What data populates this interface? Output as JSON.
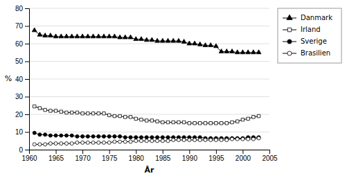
{
  "chart_data": {
    "type": "line",
    "x": [
      1961,
      1962,
      1963,
      1964,
      1965,
      1966,
      1967,
      1968,
      1969,
      1970,
      1971,
      1972,
      1973,
      1974,
      1975,
      1976,
      1977,
      1978,
      1979,
      1980,
      1981,
      1982,
      1983,
      1984,
      1985,
      1986,
      1987,
      1988,
      1989,
      1990,
      1991,
      1992,
      1993,
      1994,
      1995,
      1996,
      1997,
      1998,
      1999,
      2000,
      2001,
      2002,
      2003
    ],
    "series": [
      {
        "name": "Danmark",
        "color": "#000000",
        "marker": "triangle",
        "line_style": "solid",
        "values": [
          67.5,
          65.0,
          64.5,
          64.5,
          64.0,
          64.0,
          64.0,
          64.0,
          64.0,
          64.0,
          64.0,
          64.0,
          64.0,
          64.0,
          64.0,
          64.0,
          63.5,
          63.5,
          63.5,
          62.5,
          62.5,
          62.0,
          62.0,
          61.5,
          61.5,
          61.5,
          61.5,
          61.5,
          61.0,
          60.0,
          60.0,
          59.5,
          59.0,
          59.0,
          58.5,
          55.5,
          55.5,
          55.5,
          55.0,
          55.0,
          55.0,
          55.0,
          55.0
        ]
      },
      {
        "name": "Irland",
        "color": "#000000",
        "marker": "square-open",
        "line_style": "solid",
        "values": [
          24.5,
          23.5,
          22.5,
          22.0,
          22.0,
          21.5,
          21.0,
          21.0,
          21.0,
          20.5,
          20.5,
          20.5,
          20.5,
          20.5,
          19.5,
          19.0,
          19.0,
          18.5,
          18.5,
          17.5,
          17.0,
          16.5,
          16.5,
          16.0,
          15.5,
          15.5,
          15.5,
          15.5,
          15.5,
          15.0,
          15.0,
          15.0,
          15.0,
          15.0,
          15.0,
          15.0,
          15.0,
          15.5,
          16.0,
          17.0,
          17.5,
          18.5,
          19.0
        ]
      },
      {
        "name": "Sverige",
        "color": "#000000",
        "marker": "circle",
        "line_style": "solid",
        "values": [
          9.5,
          8.5,
          8.5,
          8.0,
          8.0,
          8.0,
          8.0,
          8.0,
          7.5,
          7.5,
          7.5,
          7.5,
          7.5,
          7.5,
          7.5,
          7.5,
          7.5,
          7.0,
          7.0,
          7.0,
          7.0,
          7.0,
          7.0,
          7.0,
          7.0,
          7.0,
          7.0,
          7.0,
          7.0,
          7.0,
          7.0,
          7.0,
          6.5,
          6.5,
          6.5,
          6.5,
          6.5,
          6.5,
          6.5,
          6.5,
          7.0,
          7.0,
          7.0
        ]
      },
      {
        "name": "Brasilien",
        "color": "#000000",
        "marker": "circle-open",
        "line_style": "solid",
        "values": [
          3.0,
          3.0,
          3.0,
          3.5,
          3.5,
          3.5,
          3.5,
          3.5,
          4.0,
          4.0,
          4.0,
          4.0,
          4.0,
          4.0,
          4.0,
          4.5,
          4.5,
          4.5,
          4.5,
          5.0,
          5.0,
          5.0,
          5.0,
          5.0,
          5.0,
          5.0,
          5.5,
          5.5,
          5.5,
          5.5,
          5.5,
          5.5,
          5.5,
          5.5,
          5.5,
          5.5,
          5.5,
          6.0,
          6.0,
          6.0,
          6.0,
          6.0,
          6.5
        ]
      }
    ],
    "xlabel": "År",
    "ylabel": "%",
    "xlim": [
      1960,
      2005
    ],
    "ylim": [
      0,
      80
    ],
    "xticks": [
      1960,
      1965,
      1970,
      1975,
      1980,
      1985,
      1990,
      1995,
      2000,
      2005
    ],
    "yticks": [
      0,
      10,
      20,
      30,
      40,
      50,
      60,
      70,
      80
    ],
    "grid": "y",
    "legend": "right"
  }
}
